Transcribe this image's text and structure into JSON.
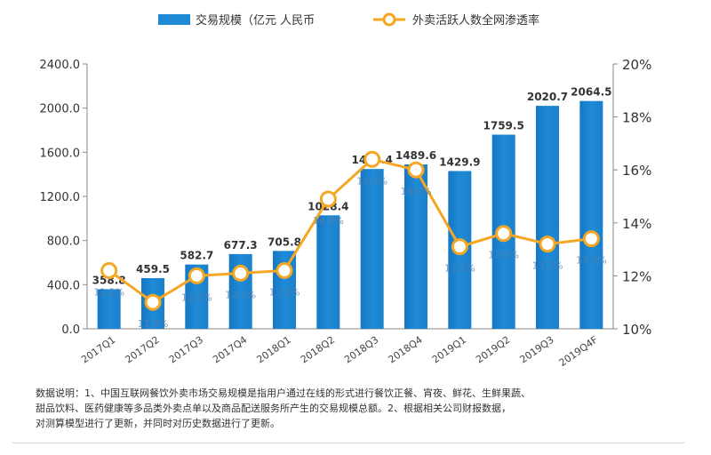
{
  "chart_data": {
    "type": "bar",
    "categories": [
      "2017Q1",
      "2017Q2",
      "2017Q3",
      "2017Q4",
      "2018Q1",
      "2018Q2",
      "2018Q3",
      "2018Q4",
      "2019Q1",
      "2019Q2",
      "2019Q3",
      "2019Q4F"
    ],
    "series": [
      {
        "name": "交易规模（亿元 人民币",
        "type": "bar",
        "axis": "left",
        "values": [
          358.8,
          459.5,
          582.7,
          677.3,
          705.8,
          1028.4,
          1448.4,
          1489.6,
          1429.9,
          1759.5,
          2020.7,
          2064.5
        ],
        "labels": [
          "358.8",
          "459.5",
          "582.7",
          "677.3",
          "705.8",
          "1028.4",
          "1448.4",
          "1489.6",
          "1429.9",
          "1759.5",
          "2020.7",
          "2064.5"
        ],
        "color": "#1f8ad6"
      },
      {
        "name": "外卖活跃人数全网渗透率",
        "type": "line",
        "axis": "right",
        "values": [
          12.2,
          11.0,
          12.0,
          12.1,
          12.2,
          14.9,
          16.4,
          16.0,
          13.1,
          13.6,
          13.2,
          13.4
        ],
        "labels": [
          "12.2%",
          "11.0%",
          "12.0%",
          "12.1%",
          "12.2%",
          "14.9%",
          "16.4%",
          "16.0%",
          "13.1%",
          "13.6%",
          "13.2%",
          "13.4%"
        ],
        "color": "#f5a623"
      }
    ],
    "y_left": {
      "ticks": [
        "0.0",
        "400.0",
        "800.0",
        "1200.0",
        "1600.0",
        "2000.0",
        "2400.0"
      ],
      "lim": [
        0,
        2400
      ]
    },
    "y_right": {
      "ticks": [
        "10%",
        "12%",
        "14%",
        "16%",
        "18%",
        "20%"
      ],
      "lim": [
        10,
        20
      ]
    },
    "legend_position": "top",
    "grid": false
  },
  "note": {
    "line1": "数据说明：1、中国互联网餐饮外卖市场交易规模是指用户通过在线的形式进行餐饮正餐、宵夜、鲜花、生鲜果蔬、",
    "line2": "甜品饮料、医药健康等多品类外卖点单以及商品配送服务所产生的交易规模总额。2、根据相关公司财报数据，",
    "line3": "对测算模型进行了更新，并同时对历史数据进行了更新。"
  }
}
